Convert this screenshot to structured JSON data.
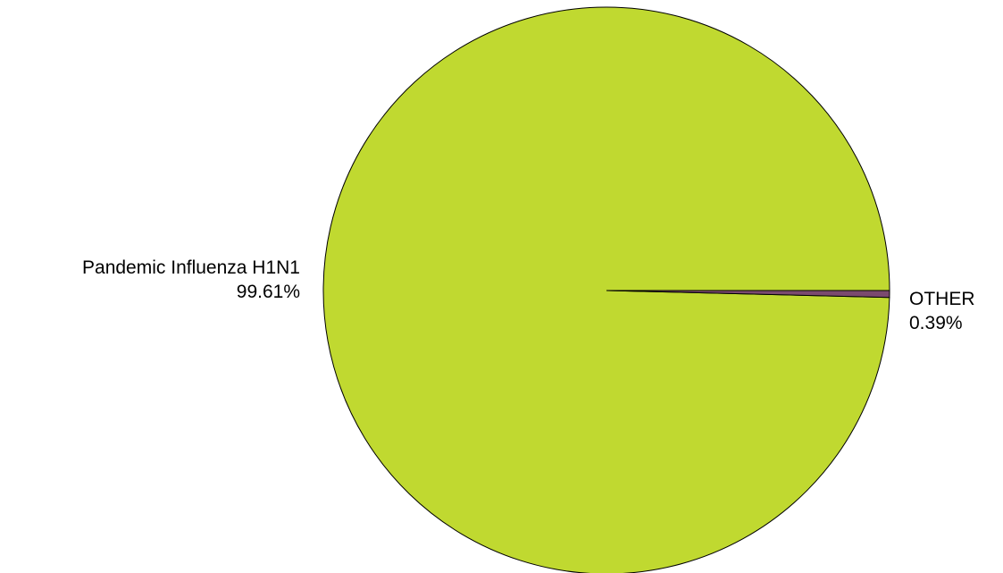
{
  "chart_data": {
    "type": "pie",
    "slices": [
      {
        "label": "Pandemic Influenza H1N1",
        "value": 99.61,
        "value_label": "99.61%",
        "color": "#c0d930"
      },
      {
        "label": "OTHER",
        "value": 0.39,
        "value_label": "0.39%",
        "color": "#7b4a6e"
      }
    ],
    "stroke_color": "#000000",
    "legend": "none"
  }
}
